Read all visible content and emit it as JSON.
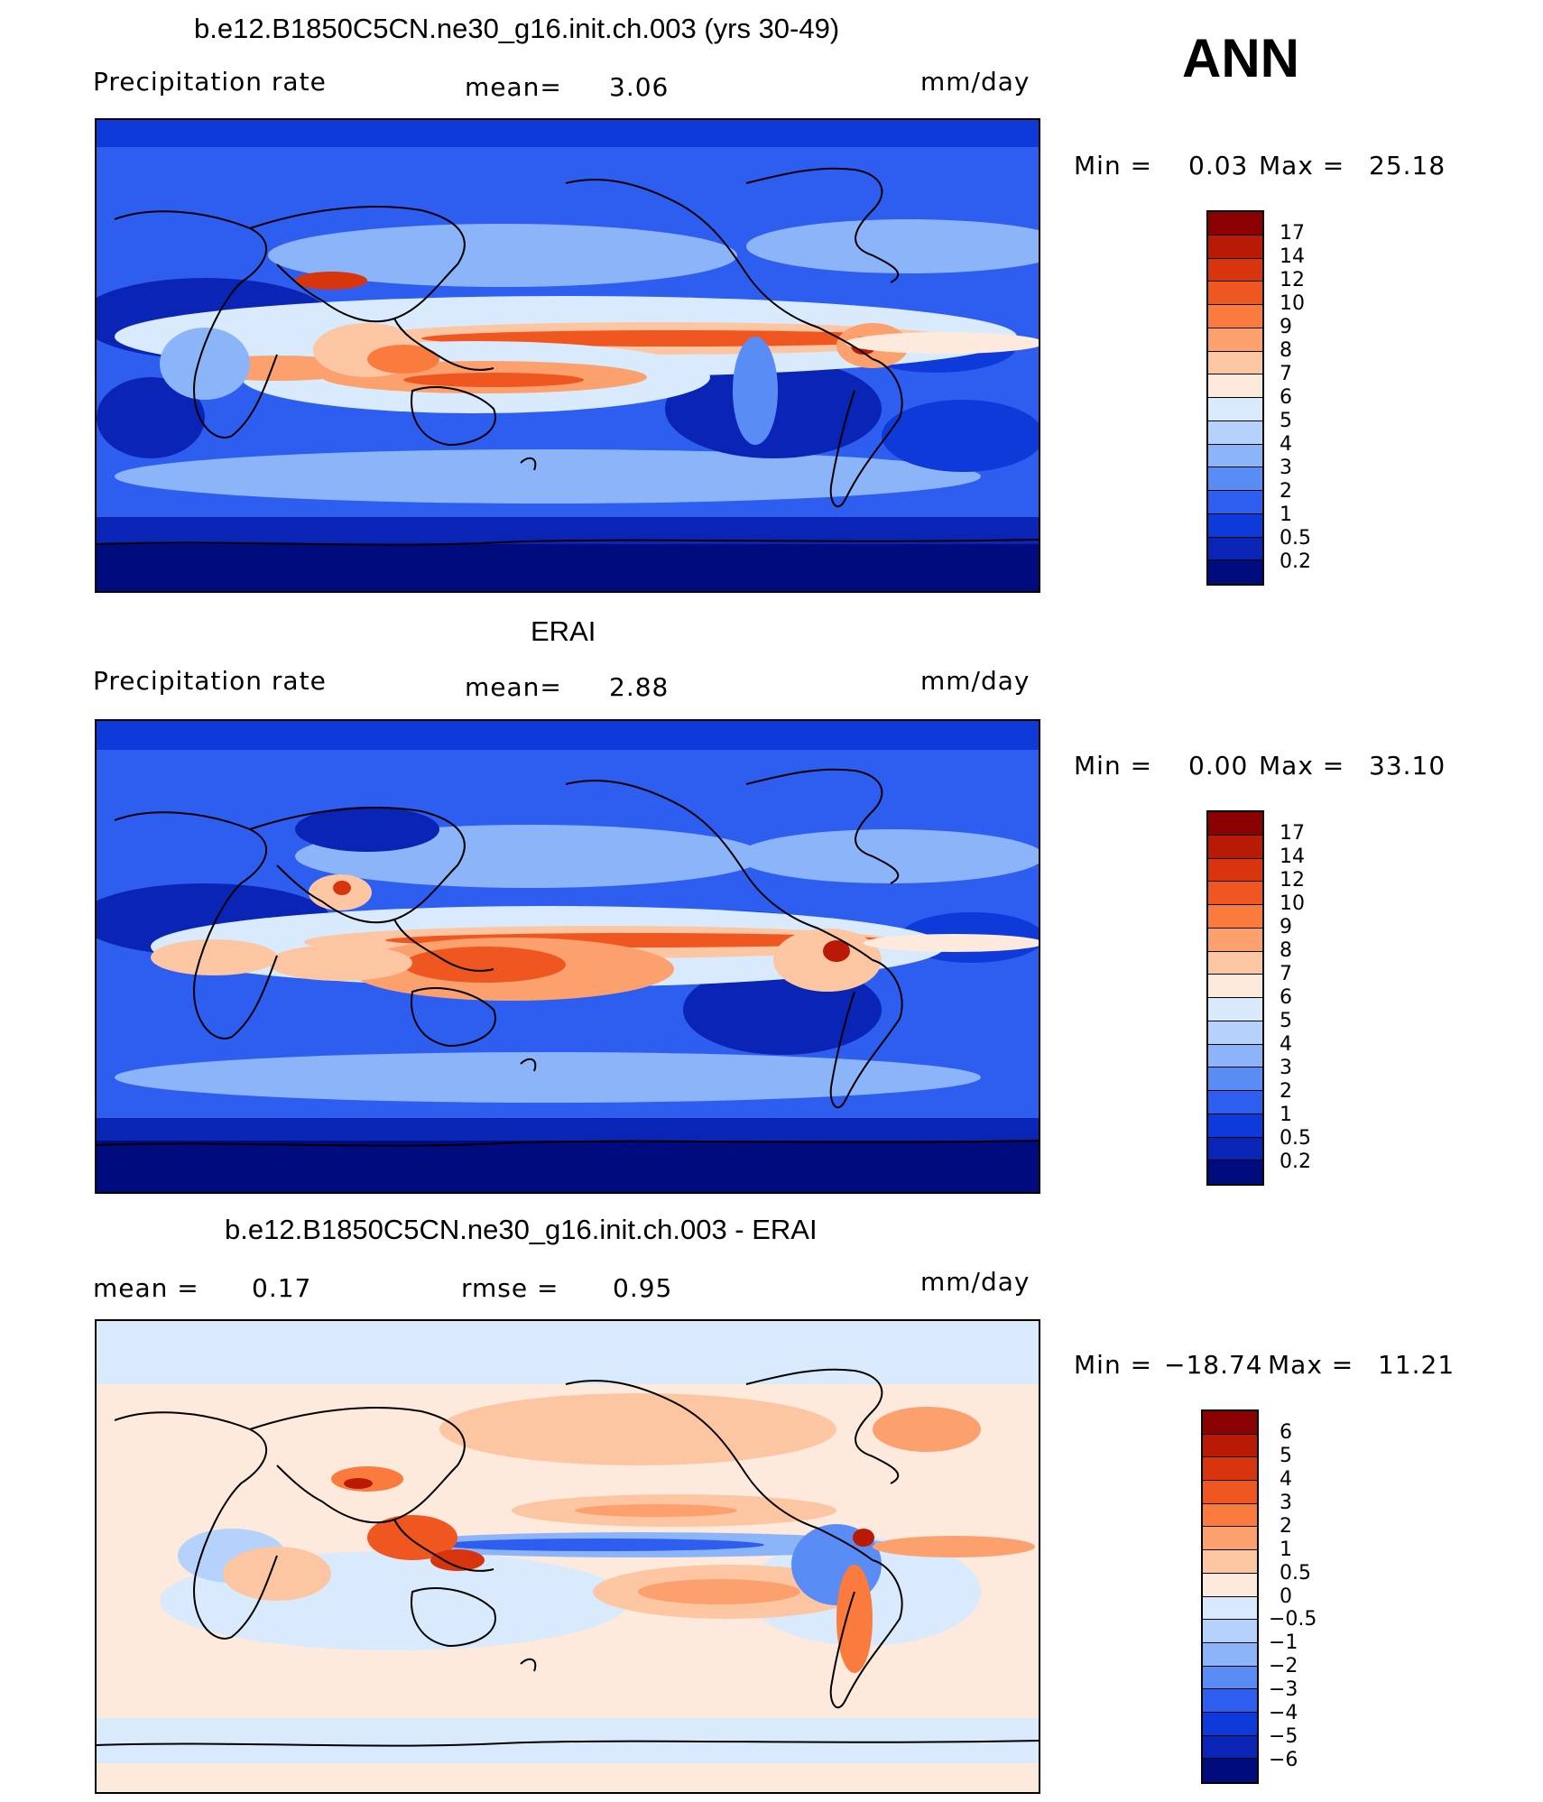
{
  "season": "ANN",
  "panels": [
    {
      "title": "b.e12.B1850C5CN.ne30_g16.init.ch.003 (yrs 30-49)",
      "left_label": "Precipitation  rate",
      "mid_label": "mean=",
      "mid_value": "3.06",
      "units": "mm/day",
      "min_label": "Min  =",
      "min_value": "0.03",
      "max_label": "Max  =",
      "max_value": "25.18",
      "colorbar": {
        "levels": [
          "17",
          "14",
          "12",
          "10",
          "9",
          "8",
          "7",
          "6",
          "5",
          "4",
          "3",
          "2",
          "1",
          "0.5",
          "0.2"
        ],
        "colors": [
          "#8b0000",
          "#b81a05",
          "#d8350f",
          "#f0561f",
          "#fb7a3e",
          "#fca06e",
          "#fdc6a3",
          "#fdeadc",
          "#d8eafb",
          "#b4d2fb",
          "#8cb4f9",
          "#5a8cf5",
          "#2e5ef0",
          "#0d3ad8",
          "#0a24b6",
          "#000c7d"
        ]
      }
    },
    {
      "title": "ERAI",
      "left_label": "Precipitation  rate",
      "mid_label": "mean=",
      "mid_value": "2.88",
      "units": "mm/day",
      "min_label": "Min  =",
      "min_value": "0.00",
      "max_label": "Max  =",
      "max_value": "33.10",
      "colorbar": {
        "levels": [
          "17",
          "14",
          "12",
          "10",
          "9",
          "8",
          "7",
          "6",
          "5",
          "4",
          "3",
          "2",
          "1",
          "0.5",
          "0.2"
        ],
        "colors": [
          "#8b0000",
          "#b81a05",
          "#d8350f",
          "#f0561f",
          "#fb7a3e",
          "#fca06e",
          "#fdc6a3",
          "#fdeadc",
          "#d8eafb",
          "#b4d2fb",
          "#8cb4f9",
          "#5a8cf5",
          "#2e5ef0",
          "#0d3ad8",
          "#0a24b6",
          "#000c7d"
        ]
      }
    },
    {
      "title": "b.e12.B1850C5CN.ne30_g16.init.ch.003 - ERAI",
      "left_label": "mean  =",
      "left_value": "0.17",
      "mid_label": "rmse  =",
      "mid_value": "0.95",
      "units": "mm/day",
      "min_label": "Min  =",
      "min_value": "−18.74",
      "max_label": "Max  =",
      "max_value": "11.21",
      "colorbar": {
        "levels": [
          "6",
          "5",
          "4",
          "3",
          "2",
          "1",
          "0.5",
          "0",
          "−0.5",
          "−1",
          "−2",
          "−3",
          "−4",
          "−5",
          "−6"
        ],
        "colors": [
          "#8b0000",
          "#b81a05",
          "#d8350f",
          "#f0561f",
          "#fb7a3e",
          "#fca06e",
          "#fdc6a3",
          "#fdeadc",
          "#d8eafb",
          "#b4d2fb",
          "#8cb4f9",
          "#5a8cf5",
          "#2e5ef0",
          "#0d3ad8",
          "#0a24b6",
          "#000c7d"
        ]
      }
    }
  ]
}
